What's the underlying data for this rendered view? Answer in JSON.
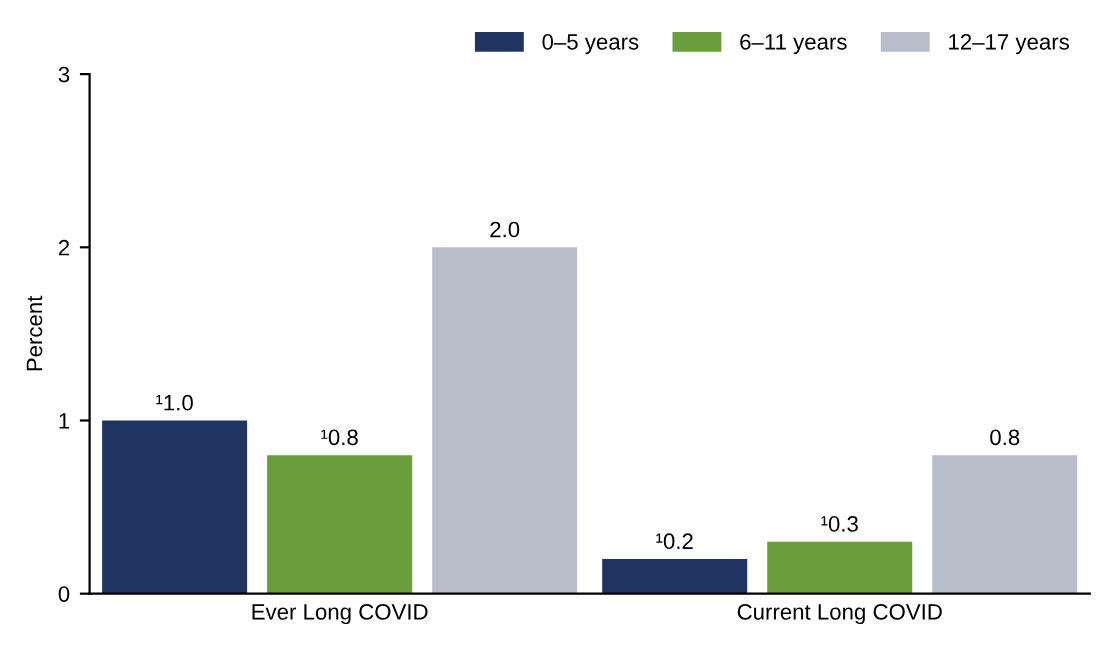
{
  "chart_data": {
    "type": "bar",
    "ylabel": "Percent",
    "categories": [
      "Ever Long COVID",
      "Current Long COVID"
    ],
    "series": [
      {
        "name": "0–5 years",
        "color": "#1f3461",
        "values": [
          1.0,
          0.2
        ],
        "value_labels": [
          "¹1.0",
          "¹0.2"
        ]
      },
      {
        "name": "6–11 years",
        "color": "#6a9e3c",
        "values": [
          0.8,
          0.3
        ],
        "value_labels": [
          "¹0.8",
          "¹0.3"
        ]
      },
      {
        "name": "12–17 years",
        "color": "#b8bdca",
        "values": [
          2.0,
          0.8
        ],
        "value_labels": [
          "2.0",
          "0.8"
        ]
      }
    ],
    "ylim": [
      0,
      3
    ],
    "yticks": [
      0,
      1,
      2,
      3
    ],
    "grid": false,
    "legend": "top right"
  }
}
